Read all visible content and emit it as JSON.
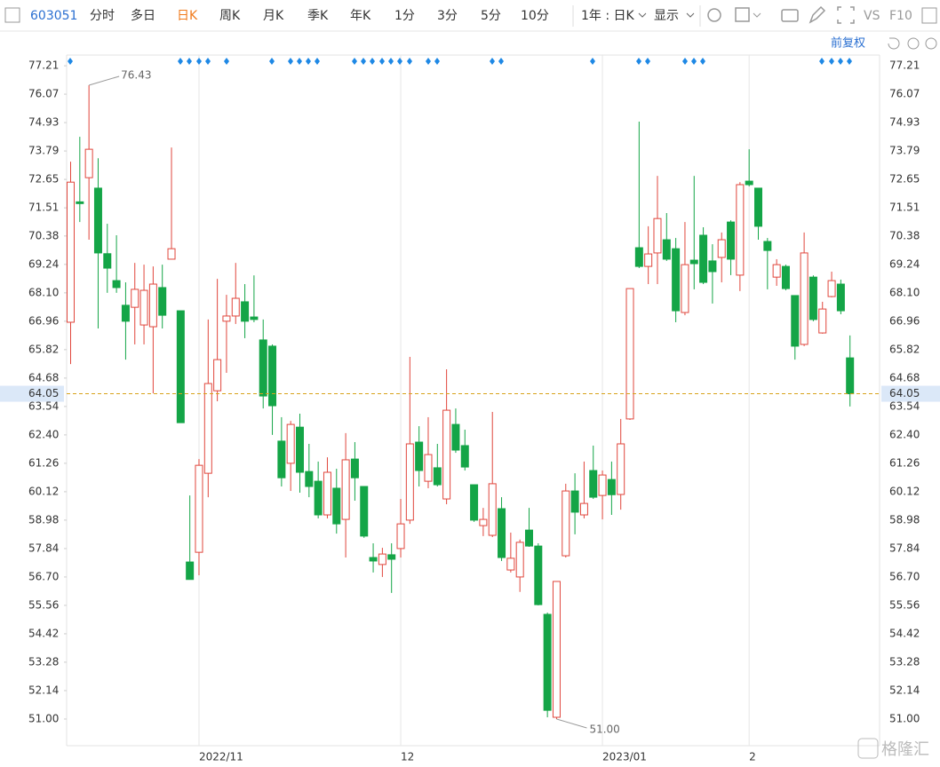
{
  "toolbar": {
    "code": "603051",
    "tabs": [
      "分时",
      "多日",
      "日K",
      "周K",
      "月K",
      "季K",
      "年K",
      "1分",
      "3分",
      "5分",
      "10分"
    ],
    "active_tab": "日K",
    "period": "1年 : 日K",
    "display": "显示",
    "vs": "VS",
    "f10": "F10",
    "adjust": "前复权"
  },
  "watermark": "格隆汇",
  "chart_data": {
    "type": "candlestick",
    "categories": [
      null,
      null,
      null,
      null,
      null,
      null,
      null,
      null,
      null,
      null,
      null,
      null,
      null,
      null,
      "2022/11",
      null,
      null,
      null,
      null,
      null,
      null,
      null,
      null,
      null,
      null,
      null,
      null,
      null,
      null,
      null,
      null,
      null,
      null,
      null,
      null,
      null,
      "12",
      null,
      null,
      null,
      null,
      null,
      null,
      null,
      null,
      null,
      null,
      null,
      null,
      null,
      null,
      null,
      null,
      null,
      null,
      null,
      null,
      null,
      "2023/01",
      null,
      null,
      null,
      null,
      null,
      null,
      null,
      null,
      null,
      null,
      null,
      null,
      null,
      null,
      null,
      "2",
      null,
      null,
      null,
      null,
      null,
      null,
      null,
      null,
      null,
      null,
      null
    ],
    "open": [
      66.92,
      71.75,
      72.72,
      72.3,
      69.67,
      68.59,
      67.6,
      67.52,
      66.81,
      66.74,
      68.31,
      69.45,
      67.38,
      57.3,
      57.69,
      60.86,
      64.17,
      66.96,
      67.17,
      67.74,
      67.13,
      66.21,
      65.96,
      62.15,
      61.26,
      62.71,
      60.93,
      60.54,
      59.19,
      60.26,
      59.01,
      61.43,
      60.33,
      57.48,
      57.2,
      57.59,
      57.84,
      58.98,
      62.11,
      60.54,
      61.08,
      59.83,
      62.82,
      61.97,
      60.4,
      58.76,
      58.37,
      59.44,
      56.98,
      56.7,
      58.58,
      57.94,
      55.2,
      51.07,
      57.55,
      60.15,
      59.19,
      60.97,
      59.97,
      60.61,
      60.01,
      63.04,
      69.91,
      69.16,
      69.7,
      70.23,
      69.87,
      67.31,
      69.41,
      70.41,
      69.38,
      69.52,
      70.94,
      68.81,
      72.58,
      72.3,
      70.16,
      68.73,
      69.16,
      67.99,
      66.03,
      68.73,
      66.49,
      67.95,
      68.45,
      65.49
    ],
    "high": [
      73.36,
      74.36,
      76.43,
      73.5,
      70.87,
      70.41,
      68.52,
      69.3,
      69.23,
      69.16,
      69.23,
      73.93,
      67.38,
      59.97,
      61.43,
      67.03,
      68.66,
      68.02,
      69.3,
      68.45,
      68.8,
      67.03,
      66.03,
      63.11,
      62.96,
      63.25,
      62.04,
      61.33,
      61.5,
      61.04,
      62.47,
      62.11,
      60.33,
      58.05,
      57.87,
      58.05,
      59.83,
      65.53,
      62.75,
      63.11,
      62.04,
      65.03,
      63.46,
      62.61,
      60.4,
      59.47,
      63.32,
      59.9,
      58.48,
      58.2,
      59.47,
      58.05,
      55.27,
      56.52,
      60.44,
      60.86,
      61.33,
      61.97,
      60.97,
      61.33,
      63.04,
      68.27,
      74.97,
      70.77,
      72.79,
      71.3,
      70.3,
      70.94,
      72.79,
      70.73,
      70.05,
      70.52,
      71.01,
      72.54,
      73.86,
      72.3,
      70.3,
      69.45,
      69.23,
      67.99,
      70.52,
      68.8,
      67.74,
      68.95,
      68.63,
      66.39
    ],
    "low": [
      65.24,
      70.94,
      70.23,
      66.67,
      68.1,
      68.1,
      65.42,
      66.03,
      66.03,
      64.07,
      66.67,
      69.45,
      62.89,
      56.6,
      56.77,
      59.9,
      63.75,
      64.89,
      66.85,
      66.28,
      66.92,
      63.46,
      62.4,
      60.33,
      60.15,
      60.08,
      59.9,
      59.05,
      59.05,
      58.44,
      57.48,
      59.76,
      58.27,
      56.88,
      56.7,
      56.06,
      57.48,
      58.83,
      60.33,
      60.26,
      60.33,
      59.62,
      61.68,
      60.97,
      58.91,
      58.34,
      58.3,
      57.34,
      56.88,
      56.1,
      57.91,
      55.56,
      51.07,
      51.0,
      57.48,
      58.41,
      59.05,
      59.83,
      59.01,
      59.19,
      59.4,
      63.0,
      69.09,
      68.45,
      68.45,
      69.38,
      66.92,
      67.2,
      68.24,
      68.45,
      67.67,
      68.52,
      68.81,
      68.17,
      72.37,
      70.23,
      68.24,
      68.38,
      68.2,
      65.42,
      65.96,
      66.96,
      66.46,
      67.92,
      67.24,
      63.54
    ],
    "close": [
      72.54,
      71.68,
      73.86,
      69.7,
      69.09,
      68.31,
      66.96,
      68.24,
      68.2,
      68.45,
      67.2,
      69.87,
      62.89,
      56.6,
      61.18,
      64.46,
      65.42,
      67.17,
      67.88,
      66.96,
      67.03,
      63.96,
      63.57,
      60.68,
      62.82,
      60.9,
      60.33,
      59.19,
      60.9,
      58.83,
      61.4,
      60.68,
      58.34,
      57.34,
      57.62,
      57.41,
      58.83,
      62.04,
      60.97,
      61.61,
      60.4,
      63.39,
      61.79,
      61.11,
      58.98,
      59.01,
      60.44,
      57.48,
      57.45,
      58.09,
      57.94,
      55.59,
      51.35,
      56.52,
      60.15,
      59.3,
      59.65,
      59.9,
      60.79,
      60.0,
      62.04,
      68.27,
      69.16,
      69.66,
      71.08,
      69.45,
      67.38,
      69.23,
      69.27,
      68.52,
      68.95,
      70.23,
      69.45,
      72.44,
      72.44,
      70.77,
      69.8,
      69.23,
      68.27,
      65.96,
      69.7,
      67.03,
      67.45,
      68.59,
      67.38,
      64.05
    ],
    "up_color": "#e0463c",
    "down_color": "#14a547",
    "last_price": 64.05,
    "last_price_color": "#d8a21a",
    "high_label": 76.43,
    "low_label": {
      "value": 51,
      "label": "51.00"
    },
    "ylim": [
      49.93,
      77.64
    ],
    "yticks": [
      77.21,
      76.07,
      74.93,
      73.79,
      72.65,
      71.51,
      70.38,
      69.24,
      {
        "value": 68.1,
        "label": "68.10"
      },
      66.96,
      65.82,
      64.68,
      63.54,
      {
        "value": 62.4,
        "label": "62.40"
      },
      61.26,
      60.12,
      58.98,
      57.84,
      {
        "value": 56.7,
        "label": "56.70"
      },
      55.56,
      54.42,
      53.28,
      52.14,
      {
        "value": 51,
        "label": "51.00"
      }
    ]
  }
}
